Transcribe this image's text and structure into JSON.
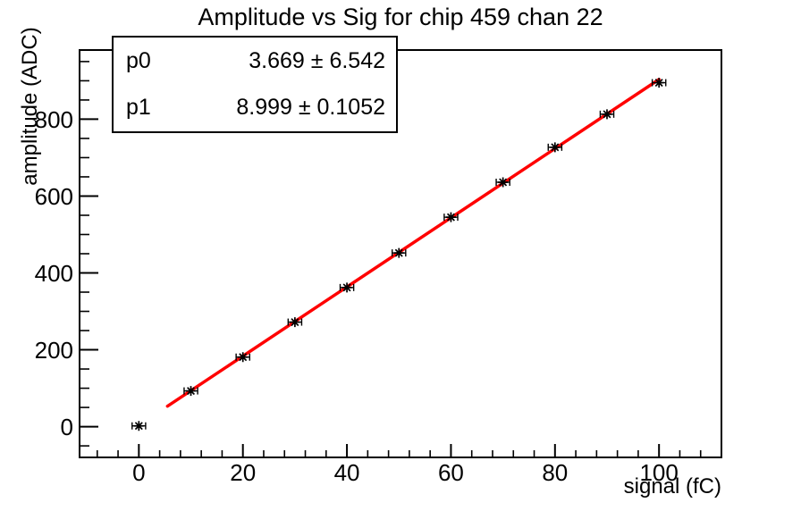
{
  "title": "Amplitude vs Sig for chip 459 chan 22",
  "stats_box": {
    "rows": [
      {
        "param": "p0",
        "value": "3.669 ± 6.542"
      },
      {
        "param": "p1",
        "value": "8.999 ± 0.1052"
      }
    ]
  },
  "chart_data": {
    "type": "scatter",
    "title": "Amplitude vs Sig for chip 459 chan 22",
    "xlabel": "signal (fC)",
    "ylabel": "amplitude (ADC)",
    "xlim": [
      -11.4,
      112
    ],
    "ylim": [
      -80,
      980
    ],
    "grid": false,
    "legend": "none",
    "x_ticks": {
      "major": [
        0,
        20,
        40,
        60,
        80,
        100
      ],
      "minor_step": 4
    },
    "y_ticks": {
      "major": [
        0,
        200,
        400,
        600,
        800
      ],
      "minor_step": 50
    },
    "colors": {
      "marker": "#000000",
      "fit_line": "#ff0000",
      "axes": "#000000",
      "background": "#ffffff"
    },
    "series": [
      {
        "name": "data-points",
        "type": "scatter",
        "marker": "asterisk",
        "color": "#000000",
        "x": [
          0,
          10,
          20,
          30,
          40,
          50,
          60,
          70,
          80,
          90,
          100
        ],
        "y": [
          2,
          93,
          181,
          272,
          362,
          452,
          545,
          636,
          727,
          813,
          895
        ],
        "xerr": 1.3
      },
      {
        "name": "linear-fit",
        "type": "line",
        "color": "#ff0000",
        "fit_range": [
          5.5,
          100
        ],
        "p0": 3.669,
        "p1": 8.999
      }
    ],
    "fit_results": {
      "p0": {
        "value": 3.669,
        "error": 6.542
      },
      "p1": {
        "value": 8.999,
        "error": 0.1052
      }
    }
  }
}
